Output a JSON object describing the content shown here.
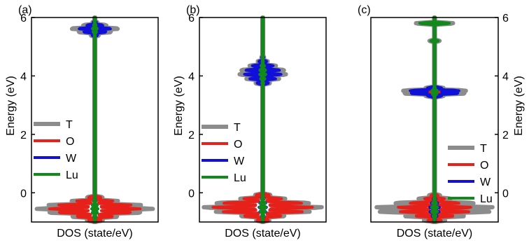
{
  "colors": {
    "T": "#8c8c8c",
    "O": "#e8201a",
    "W": "#1010d8",
    "Lu": "#118a1a"
  },
  "chart_data": [
    {
      "type": "line",
      "panel_label": "(a)",
      "xlabel": "DOS (state/eV)",
      "ylabel": "Energy (eV)",
      "ylabel_side": "left",
      "ylim": [
        -1.0,
        6.0
      ],
      "yticks": [
        0,
        2,
        4,
        6
      ],
      "legend": [
        "T",
        "O",
        "W",
        "Lu"
      ],
      "legend_position": "left-middle",
      "bands": [
        {
          "center": -0.55,
          "sigma": 0.28,
          "levels": [
            -0.95,
            -0.82,
            -0.68,
            -0.55,
            -0.42,
            -0.28,
            -0.15
          ],
          "widths": {
            "T": 0.92,
            "O": 0.72,
            "W": 0.05,
            "Lu": 0.05
          }
        },
        {
          "center": 5.6,
          "sigma": 0.16,
          "levels": [
            5.38,
            5.5,
            5.62,
            5.74,
            5.85
          ],
          "widths": {
            "T": 0.38,
            "O": 0.22,
            "W": 0.26,
            "Lu": 0.04
          }
        }
      ]
    },
    {
      "type": "line",
      "panel_label": "(b)",
      "xlabel": "DOS (state/eV)",
      "ylabel": "Energy (eV)",
      "ylabel_side": "left",
      "ylim": [
        -1.0,
        6.0
      ],
      "yticks": [
        0,
        2,
        4,
        6
      ],
      "legend": [
        "T",
        "O",
        "W",
        "Lu"
      ],
      "legend_position": "left-middle",
      "bands": [
        {
          "center": -0.5,
          "sigma": 0.3,
          "levels": [
            -0.95,
            -0.8,
            -0.65,
            -0.5,
            -0.35,
            -0.2,
            -0.07
          ],
          "widths": {
            "T": 0.95,
            "O": 0.8,
            "W": 0.06,
            "Lu": 0.05
          }
        },
        {
          "center": 4.1,
          "sigma": 0.32,
          "levels": [
            3.75,
            3.9,
            4.05,
            4.2,
            4.35,
            4.5,
            4.65
          ],
          "widths": {
            "T": 0.38,
            "O": 0.25,
            "W": 0.3,
            "Lu": 0.05
          }
        }
      ]
    },
    {
      "type": "line",
      "panel_label": "(c)",
      "xlabel": "DOS (state/eV)",
      "ylabel": "Energy (eV)",
      "ylabel_side": "right",
      "ylim": [
        -1.0,
        6.0
      ],
      "yticks": [
        0,
        2,
        4,
        6
      ],
      "legend": [
        "T",
        "O",
        "W",
        "Lu"
      ],
      "legend_position": "right-lower",
      "bands": [
        {
          "center": -0.55,
          "sigma": 0.3,
          "levels": [
            -0.95,
            -0.8,
            -0.65,
            -0.5,
            -0.35,
            -0.2,
            -0.08
          ],
          "widths": {
            "T": 0.96,
            "O": 0.6,
            "W": 0.08,
            "Lu": 0.05
          }
        },
        {
          "center": 3.45,
          "sigma": 0.12,
          "levels": [
            3.3,
            3.4,
            3.5,
            3.6
          ],
          "widths": {
            "T": 0.58,
            "O": 0.22,
            "W": 0.45,
            "Lu": 0.05
          }
        },
        {
          "center": 5.2,
          "sigma": 0.05,
          "levels": [
            5.2
          ],
          "widths": {
            "T": 0.08,
            "O": 0.02,
            "W": 0.02,
            "Lu": 0.06
          }
        },
        {
          "center": 5.8,
          "sigma": 0.06,
          "levels": [
            5.8
          ],
          "widths": {
            "T": 0.3,
            "O": 0.1,
            "W": 0.04,
            "Lu": 0.24
          }
        }
      ]
    }
  ]
}
